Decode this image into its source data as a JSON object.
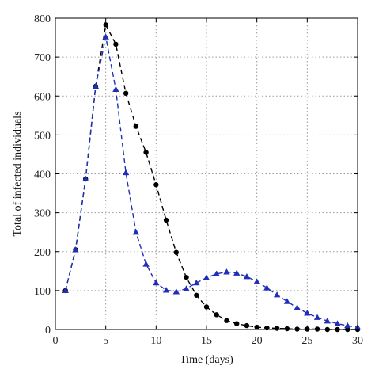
{
  "chart_data": {
    "type": "line",
    "title": "",
    "xlabel": "Time (days)",
    "ylabel": "Total of infected individuals",
    "xlim": [
      0,
      30
    ],
    "ylim": [
      0,
      800
    ],
    "xticks": [
      0,
      5,
      10,
      15,
      20,
      25,
      30
    ],
    "yticks": [
      0,
      100,
      200,
      300,
      400,
      500,
      600,
      700,
      800
    ],
    "grid": true,
    "legend": "none",
    "series": [
      {
        "color": "#000000",
        "marker": "circle",
        "line_style": "dashed",
        "x": [
          1,
          2,
          3,
          4,
          5,
          6,
          7,
          8,
          9,
          10,
          11,
          12,
          13,
          14,
          15,
          16,
          17,
          18,
          19,
          20,
          21,
          22,
          23,
          24,
          25,
          26,
          27,
          28,
          29,
          30
        ],
        "y": [
          100,
          205,
          387,
          625,
          783,
          733,
          607,
          522,
          455,
          372,
          281,
          198,
          134,
          88,
          58,
          38,
          23,
          15,
          10,
          6,
          4,
          3,
          2,
          1,
          1,
          1,
          0,
          0,
          0,
          0
        ]
      },
      {
        "color": "#1f2fb8",
        "marker": "triangle",
        "line_style": "dashed",
        "x": [
          1,
          2,
          3,
          4,
          5,
          6,
          7,
          8,
          9,
          10,
          11,
          12,
          13,
          14,
          15,
          16,
          17,
          18,
          19,
          20,
          21,
          22,
          23,
          24,
          25,
          26,
          27,
          28,
          29,
          30
        ],
        "y": [
          100,
          205,
          387,
          625,
          752,
          617,
          403,
          250,
          168,
          120,
          101,
          97,
          105,
          120,
          133,
          143,
          148,
          145,
          136,
          123,
          107,
          89,
          72,
          56,
          42,
          31,
          22,
          15,
          10,
          6
        ]
      }
    ]
  }
}
